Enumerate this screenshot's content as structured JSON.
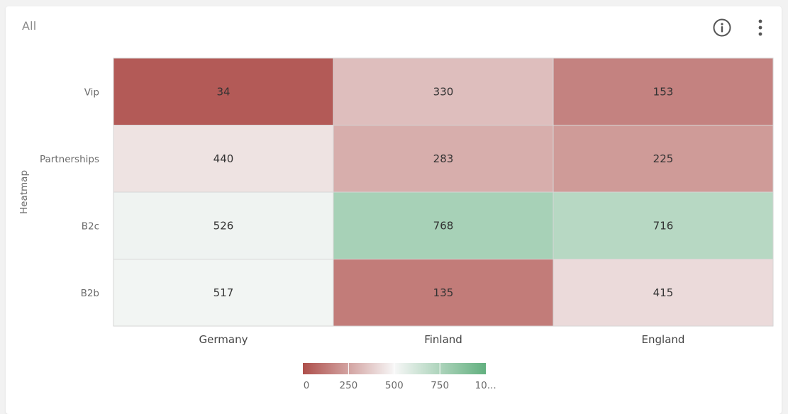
{
  "widget": {
    "title": "All",
    "info_icon": "info-circle-icon",
    "menu_icon": "more-vertical-icon"
  },
  "chart_data": {
    "type": "heatmap",
    "ylabel": "Heatmap",
    "rows": [
      "Vip",
      "Partnerships",
      "B2c",
      "B2b"
    ],
    "columns": [
      "Germany",
      "Finland",
      "England"
    ],
    "values": [
      [
        34,
        330,
        153
      ],
      [
        440,
        283,
        225
      ],
      [
        526,
        768,
        716
      ],
      [
        517,
        135,
        415
      ]
    ],
    "color_scale": {
      "min": 0,
      "mid": 500,
      "max": 1000,
      "min_color": "#ae4f4b",
      "mid_color": "#f7f7f7",
      "max_color": "#62b07f"
    },
    "legend": {
      "position": "bottom-center",
      "ticks": [
        "0",
        "250",
        "500",
        "750",
        "10..."
      ]
    }
  }
}
